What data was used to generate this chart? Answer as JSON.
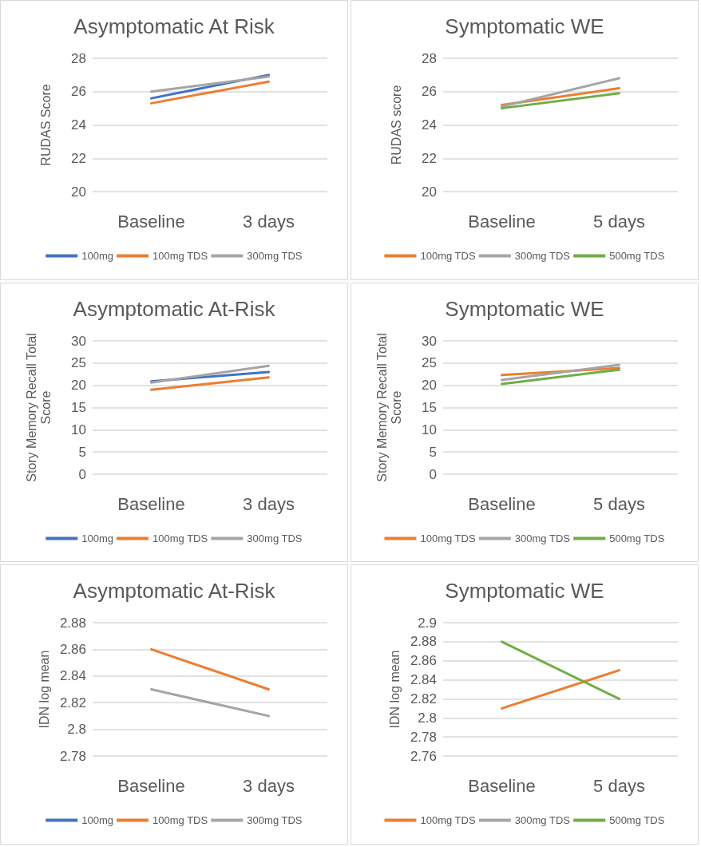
{
  "chart_data": [
    {
      "type": "line",
      "title": "Asymptomatic At Risk",
      "ylabel": "RUDAS Score",
      "categories": [
        "Baseline",
        "3 days"
      ],
      "ylim": [
        20,
        28
      ],
      "yticks": [
        20,
        22,
        24,
        26,
        28
      ],
      "grid": "y",
      "legend": "bottom",
      "marker": "none",
      "series": [
        {
          "name": "100mg",
          "color": "#4472c4",
          "values": [
            25.6,
            27.0
          ]
        },
        {
          "name": "100mg TDS",
          "color": "#ed7d31",
          "values": [
            25.3,
            26.6
          ]
        },
        {
          "name": "300mg TDS",
          "color": "#a5a5a5",
          "values": [
            26.0,
            26.9
          ]
        }
      ]
    },
    {
      "type": "line",
      "title": "Symptomatic WE",
      "ylabel": "RUDAS score",
      "categories": [
        "Baseline",
        "5 days"
      ],
      "ylim": [
        20,
        28
      ],
      "yticks": [
        20,
        22,
        24,
        26,
        28
      ],
      "grid": "y",
      "legend": "bottom",
      "marker": "none",
      "series": [
        {
          "name": "100mg TDS",
          "color": "#ed7d31",
          "values": [
            25.2,
            26.2
          ]
        },
        {
          "name": "300mg TDS",
          "color": "#a5a5a5",
          "values": [
            25.1,
            26.8
          ]
        },
        {
          "name": "500mg TDS",
          "color": "#70ad47",
          "values": [
            25.0,
            25.9
          ]
        }
      ]
    },
    {
      "type": "line",
      "title": "Asymptomatic At-Risk",
      "ylabel": "Story Memory Recall Total Score",
      "categories": [
        "Baseline",
        "3 days"
      ],
      "ylim": [
        0,
        30
      ],
      "yticks": [
        0,
        5,
        10,
        15,
        20,
        25,
        30
      ],
      "grid": "y",
      "legend": "bottom",
      "marker": "none",
      "series": [
        {
          "name": "100mg",
          "color": "#4472c4",
          "values": [
            20.9,
            23.0
          ]
        },
        {
          "name": "100mg TDS",
          "color": "#ed7d31",
          "values": [
            19.0,
            21.8
          ]
        },
        {
          "name": "300mg TDS",
          "color": "#a5a5a5",
          "values": [
            20.6,
            24.4
          ]
        }
      ]
    },
    {
      "type": "line",
      "title": "Symptomatic WE",
      "ylabel": "Story Memory Recall Total Score",
      "categories": [
        "Baseline",
        "5 days"
      ],
      "ylim": [
        0,
        30
      ],
      "yticks": [
        0,
        5,
        10,
        15,
        20,
        25,
        30
      ],
      "grid": "y",
      "legend": "bottom",
      "marker": "none",
      "series": [
        {
          "name": "100mg TDS",
          "color": "#ed7d31",
          "values": [
            22.3,
            23.9
          ]
        },
        {
          "name": "300mg TDS",
          "color": "#a5a5a5",
          "values": [
            21.2,
            24.6
          ]
        },
        {
          "name": "500mg TDS",
          "color": "#70ad47",
          "values": [
            20.3,
            23.5
          ]
        }
      ]
    },
    {
      "type": "line",
      "title": "Asymptomatic At-Risk",
      "ylabel": "IDN log mean",
      "categories": [
        "Baseline",
        "3 days"
      ],
      "ylim": [
        2.78,
        2.88
      ],
      "yticks": [
        2.78,
        2.8,
        2.82,
        2.84,
        2.86,
        2.88
      ],
      "grid": "y",
      "legend": "bottom",
      "marker": "none",
      "series": [
        {
          "name": "100mg",
          "color": "#4472c4",
          "values": [
            null,
            null
          ]
        },
        {
          "name": "100mg TDS",
          "color": "#ed7d31",
          "values": [
            2.86,
            2.83
          ]
        },
        {
          "name": "300mg TDS",
          "color": "#a5a5a5",
          "values": [
            2.83,
            2.81
          ]
        }
      ]
    },
    {
      "type": "line",
      "title": "Symptomatic WE",
      "ylabel": "IDN log mean",
      "categories": [
        "Baseline",
        "5 days"
      ],
      "ylim": [
        2.76,
        2.9
      ],
      "yticks": [
        2.76,
        2.78,
        2.8,
        2.82,
        2.84,
        2.86,
        2.88,
        2.9
      ],
      "grid": "y",
      "legend": "bottom",
      "marker": "none",
      "series": [
        {
          "name": "100mg TDS",
          "color": "#ed7d31",
          "values": [
            2.81,
            2.85
          ]
        },
        {
          "name": "300mg TDS",
          "color": "#a5a5a5",
          "values": [
            null,
            null
          ]
        },
        {
          "name": "500mg TDS",
          "color": "#70ad47",
          "values": [
            2.88,
            2.82
          ]
        }
      ]
    }
  ]
}
